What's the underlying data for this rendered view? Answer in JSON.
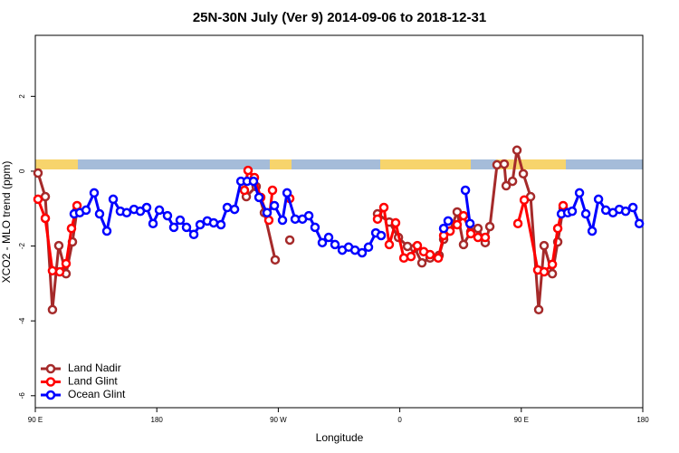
{
  "chart_data": {
    "type": "line",
    "title": "25N-30N July (Ver 9)   2014-09-06 to 2018-12-31",
    "x_label": "Longitude",
    "y_label": "XCO2 - MLO trend (ppm)",
    "xlim": [
      90,
      540
    ],
    "ylim": [
      -6.32,
      3.63
    ],
    "xticks": [
      {
        "value": 90,
        "label": "90 E"
      },
      180,
      {
        "value": 270,
        "label": "90 W"
      },
      {
        "value": 360,
        "label": "0"
      },
      {
        "value": 450,
        "label": "90 E"
      },
      180
    ],
    "yticks": [
      -6,
      -4,
      -2,
      0,
      2
    ],
    "legend": "bottom-left",
    "series": [
      {
        "name": "Land Nadir",
        "color": "#a52a2a",
        "x": [
          92.0,
          97.4,
          102.7,
          107.4,
          112.8,
          117.5,
          120.9,
          null,
          246.3,
          253.6,
          259.7,
          267.7,
          null,
          278.5,
          null,
          343.5,
          352.2,
          359.0,
          365.7,
          371.0,
          376.4,
          382.4,
          389.1,
          392.5,
          397.2,
          402.5,
          407.2,
          412.6,
          417.9,
          423.3,
          426.7,
          432.0,
          437.4,
          438.8,
          443.5,
          446.8,
          451.5,
          456.9,
          462.9,
          466.9,
          473.0,
          477.0,
          481.0
        ],
        "values": [
          -0.05,
          -0.68,
          -3.7,
          -1.99,
          -2.74,
          -1.89,
          -1.04,
          null,
          -0.68,
          -0.41,
          -1.11,
          -2.37,
          null,
          -1.84,
          null,
          -1.14,
          -1.36,
          -1.77,
          -2.01,
          -2.06,
          -2.45,
          -2.32,
          -2.25,
          -1.82,
          -1.6,
          -1.09,
          -1.96,
          -1.62,
          -1.53,
          -1.91,
          -1.48,
          0.17,
          0.19,
          -0.39,
          -0.27,
          0.56,
          -0.07,
          -0.68,
          -3.7,
          -1.99,
          -2.74,
          -1.89,
          -0.99
        ]
      },
      {
        "name": "Land Glint",
        "color": "#ff0000",
        "x": [
          92.0,
          97.4,
          102.7,
          108.1,
          112.8,
          116.8,
          120.9,
          null,
          244.9,
          247.6,
          252.3,
          257.0,
          263.0,
          265.7,
          null,
          278.5,
          null,
          343.5,
          348.2,
          352.2,
          356.9,
          363.0,
          368.3,
          373.0,
          377.7,
          382.4,
          388.5,
          392.5,
          397.2,
          402.5,
          407.2,
          412.6,
          417.9,
          423.3,
          null,
          447.5,
          452.2,
          462.2,
          466.9,
          473.0,
          477.0,
          481.0
        ],
        "values": [
          -0.75,
          -1.26,
          -2.66,
          -2.69,
          -2.47,
          -1.53,
          -0.92,
          null,
          -0.51,
          0.02,
          -0.17,
          -0.7,
          -1.31,
          -0.51,
          null,
          -0.73,
          null,
          -1.28,
          -0.97,
          -1.96,
          -1.38,
          -2.32,
          -2.28,
          -1.99,
          -2.15,
          -2.23,
          -2.32,
          -1.72,
          -1.6,
          -1.43,
          -1.19,
          -1.67,
          -1.77,
          -1.77,
          null,
          -1.4,
          -0.77,
          -2.64,
          -2.69,
          -2.49,
          -1.53,
          -0.92
        ]
      },
      {
        "name": "Ocean Glint",
        "color": "#0000ff",
        "x": [
          118.8,
          122.9,
          127.6,
          133.6,
          137.6,
          143.0,
          147.7,
          153.0,
          157.7,
          163.1,
          167.8,
          172.5,
          177.2,
          181.9,
          187.9,
          192.6,
          197.3,
          202.0,
          207.4,
          212.1,
          217.4,
          222.1,
          227.5,
          232.2,
          237.6,
          242.3,
          246.9,
          251.6,
          255.7,
          261.7,
          267.1,
          273.1,
          276.5,
          282.5,
          287.9,
          292.6,
          297.2,
          302.6,
          307.3,
          312.0,
          317.4,
          322.1,
          326.8,
          332.1,
          336.8,
          342.2,
          346.2,
          null,
          392.5,
          395.8,
          null,
          408.6,
          412.0,
          null,
          479.7,
          484.4,
          487.7,
          493.1,
          497.8,
          502.5,
          507.2,
          512.6,
          517.9,
          522.6,
          527.3,
          532.7,
          537.4
        ],
        "values": [
          -1.14,
          -1.11,
          -1.04,
          -0.58,
          -1.14,
          -1.6,
          -0.75,
          -1.07,
          -1.11,
          -1.02,
          -1.07,
          -0.97,
          -1.4,
          -1.04,
          -1.19,
          -1.5,
          -1.31,
          -1.5,
          -1.69,
          -1.43,
          -1.33,
          -1.38,
          -1.43,
          -0.97,
          -1.02,
          -0.27,
          -0.27,
          -0.27,
          -0.7,
          -1.11,
          -0.92,
          -1.31,
          -0.58,
          -1.28,
          -1.28,
          -1.19,
          -1.5,
          -1.91,
          -1.77,
          -1.96,
          -2.11,
          -2.03,
          -2.11,
          -2.18,
          -2.03,
          -1.65,
          -1.72,
          null,
          -1.53,
          -1.33,
          null,
          -0.51,
          -1.4,
          null,
          -1.14,
          -1.11,
          -1.07,
          -0.58,
          -1.14,
          -1.6,
          -0.75,
          -1.04,
          -1.11,
          -1.02,
          -1.07,
          -0.97,
          -1.4
        ]
      }
    ]
  }
}
